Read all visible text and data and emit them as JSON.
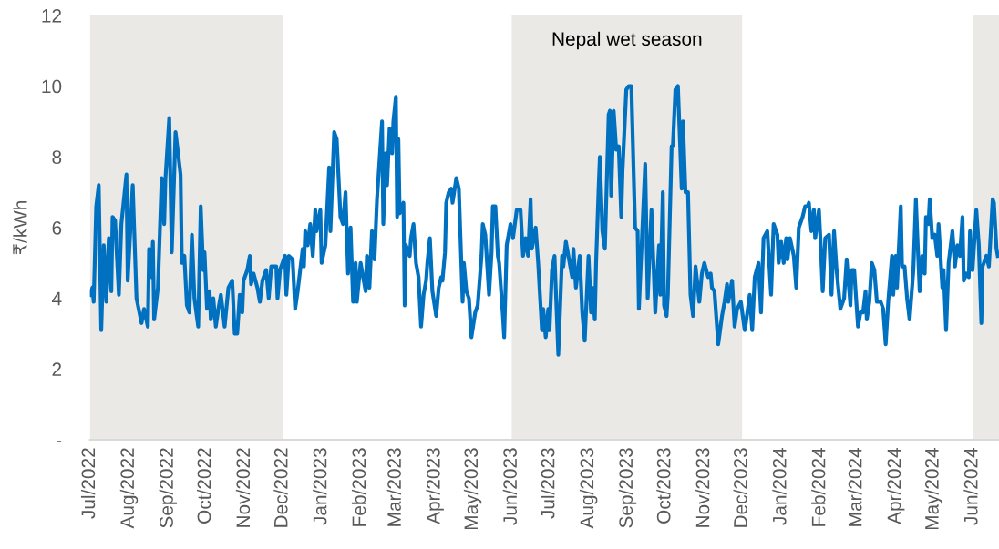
{
  "chart_data": {
    "type": "line",
    "ylabel": "₹/kWh",
    "color": "#0070c0",
    "line_style": "solid",
    "marker": "none",
    "grid": false,
    "legend": false,
    "xlim": [
      "2022-07-01",
      "2024-06-22"
    ],
    "ylim": [
      0,
      12
    ],
    "yticks": [
      {
        "value": 0,
        "label": "-"
      },
      2,
      4,
      6,
      8,
      10,
      12
    ],
    "xticks": [
      {
        "value": "2022-07-01",
        "label": "Jul/2022"
      },
      {
        "value": "2022-08-01",
        "label": "Aug/2022"
      },
      {
        "value": "2022-09-01",
        "label": "Sep/2022"
      },
      {
        "value": "2022-10-01",
        "label": "Oct/2022"
      },
      {
        "value": "2022-11-01",
        "label": "Nov/2022"
      },
      {
        "value": "2022-12-01",
        "label": "Dec/2022"
      },
      {
        "value": "2023-01-01",
        "label": "Jan/2023"
      },
      {
        "value": "2023-02-01",
        "label": "Feb/2023"
      },
      {
        "value": "2023-03-01",
        "label": "Mar/2023"
      },
      {
        "value": "2023-04-01",
        "label": "Apr/2023"
      },
      {
        "value": "2023-05-01",
        "label": "May/2023"
      },
      {
        "value": "2023-06-01",
        "label": "Jun/2023"
      },
      {
        "value": "2023-07-01",
        "label": "Jul/2023"
      },
      {
        "value": "2023-08-01",
        "label": "Aug/2023"
      },
      {
        "value": "2023-09-01",
        "label": "Sep/2023"
      },
      {
        "value": "2023-10-01",
        "label": "Oct/2023"
      },
      {
        "value": "2023-11-01",
        "label": "Nov/2023"
      },
      {
        "value": "2023-12-01",
        "label": "Dec/2023"
      },
      {
        "value": "2024-01-01",
        "label": "Jan/2024"
      },
      {
        "value": "2024-02-01",
        "label": "Feb/2024"
      },
      {
        "value": "2024-03-01",
        "label": "Mar/2024"
      },
      {
        "value": "2024-04-01",
        "label": "Apr/2024"
      },
      {
        "value": "2024-05-01",
        "label": "May/2024"
      },
      {
        "value": "2024-06-01",
        "label": "Jun/2024"
      }
    ],
    "bands": [
      {
        "axis": "x",
        "from": "2022-07-01",
        "to": "2022-12-01",
        "color": "#ebe9e5"
      },
      {
        "axis": "x",
        "from": "2023-06-01",
        "to": "2023-12-01",
        "color": "#ebe9e5",
        "label": "Nepal wet season"
      },
      {
        "axis": "x",
        "from": "2024-06-01",
        "to": "2024-06-22",
        "color": "#ebe9e5"
      }
    ],
    "x": [
      "2022-07-01",
      "2022-07-03",
      "2022-07-04",
      "2022-07-06",
      "2022-07-08",
      "2022-07-10",
      "2022-07-12",
      "2022-07-14",
      "2022-07-16",
      "2022-07-18",
      "2022-07-19",
      "2022-07-21",
      "2022-07-24",
      "2022-07-26",
      "2022-07-30",
      "2022-07-31",
      "2022-08-04",
      "2022-08-07",
      "2022-08-11",
      "2022-08-13",
      "2022-08-16",
      "2022-08-17",
      "2022-08-19",
      "2022-08-20",
      "2022-08-21",
      "2022-08-24",
      "2022-08-27",
      "2022-08-29",
      "2022-08-30",
      "2022-09-02",
      "2022-09-04",
      "2022-09-07",
      "2022-09-11",
      "2022-09-12",
      "2022-09-14",
      "2022-09-16",
      "2022-09-18",
      "2022-09-20",
      "2022-09-22",
      "2022-09-25",
      "2022-09-27",
      "2022-09-29",
      "2022-09-30",
      "2022-10-02",
      "2022-10-04",
      "2022-10-05",
      "2022-10-07",
      "2022-10-09",
      "2022-10-11",
      "2022-10-13",
      "2022-10-16",
      "2022-10-19",
      "2022-10-22",
      "2022-10-24",
      "2022-10-26",
      "2022-10-28",
      "2022-10-30",
      "2022-10-31",
      "2022-11-03",
      "2022-11-05",
      "2022-11-06",
      "2022-11-08",
      "2022-11-11",
      "2022-11-13",
      "2022-11-15",
      "2022-11-18",
      "2022-11-20",
      "2022-11-22",
      "2022-11-26",
      "2022-11-27",
      "2022-11-29",
      "2022-12-03",
      "2022-12-04",
      "2022-12-06",
      "2022-12-09",
      "2022-12-11",
      "2022-12-13",
      "2022-12-17",
      "2022-12-18",
      "2022-12-19",
      "2022-12-21",
      "2022-12-23",
      "2022-12-25",
      "2022-12-27",
      "2022-12-28",
      "2022-12-31",
      "2023-01-01",
      "2023-01-04",
      "2023-01-07",
      "2023-01-08",
      "2023-01-11",
      "2023-01-13",
      "2023-01-16",
      "2023-01-18",
      "2023-01-20",
      "2023-01-22",
      "2023-01-24",
      "2023-01-26",
      "2023-01-28",
      "2023-01-29",
      "2023-02-01",
      "2023-02-05",
      "2023-02-06",
      "2023-02-08",
      "2023-02-10",
      "2023-02-12",
      "2023-02-14",
      "2023-02-18",
      "2023-02-19",
      "2023-02-21",
      "2023-02-22",
      "2023-02-24",
      "2023-02-26",
      "2023-02-27",
      "2023-03-01",
      "2023-03-02",
      "2023-03-03",
      "2023-03-04",
      "2023-03-07",
      "2023-03-08",
      "2023-03-09",
      "2023-03-12",
      "2023-03-13",
      "2023-03-15",
      "2023-03-17",
      "2023-03-19",
      "2023-03-21",
      "2023-03-23",
      "2023-03-25",
      "2023-03-26",
      "2023-03-28",
      "2023-03-30",
      "2023-04-02",
      "2023-04-04",
      "2023-04-06",
      "2023-04-07",
      "2023-04-09",
      "2023-04-10",
      "2023-04-12",
      "2023-04-14",
      "2023-04-15",
      "2023-04-18",
      "2023-04-20",
      "2023-04-23",
      "2023-04-24",
      "2023-04-26",
      "2023-04-28",
      "2023-04-30",
      "2023-05-03",
      "2023-05-05",
      "2023-05-08",
      "2023-05-09",
      "2023-05-11",
      "2023-05-14",
      "2023-05-16",
      "2023-05-17",
      "2023-05-19",
      "2023-05-21",
      "2023-05-22",
      "2023-05-25",
      "2023-05-26",
      "2023-05-28",
      "2023-05-31",
      "2023-06-02",
      "2023-06-05",
      "2023-06-08",
      "2023-06-10",
      "2023-06-12",
      "2023-06-14",
      "2023-06-16",
      "2023-06-17",
      "2023-06-20",
      "2023-06-22",
      "2023-06-25",
      "2023-06-26",
      "2023-06-28",
      "2023-06-30",
      "2023-07-01",
      "2023-07-03",
      "2023-07-05",
      "2023-07-08",
      "2023-07-11",
      "2023-07-12",
      "2023-07-14",
      "2023-07-16",
      "2023-07-19",
      "2023-07-20",
      "2023-07-22",
      "2023-07-25",
      "2023-07-27",
      "2023-07-29",
      "2023-08-01",
      "2023-08-03",
      "2023-08-04",
      "2023-08-06",
      "2023-08-07",
      "2023-08-09",
      "2023-08-10",
      "2023-08-12",
      "2023-08-14",
      "2023-08-17",
      "2023-08-18",
      "2023-08-19",
      "2023-08-21",
      "2023-08-23",
      "2023-08-25",
      "2023-08-27",
      "2023-08-28",
      "2023-08-31",
      "2023-09-02",
      "2023-09-04",
      "2023-09-07",
      "2023-09-09",
      "2023-09-10",
      "2023-09-15",
      "2023-09-17",
      "2023-09-20",
      "2023-09-23",
      "2023-09-25",
      "2023-09-26",
      "2023-09-27",
      "2023-09-29",
      "2023-09-30",
      "2023-10-02",
      "2023-10-03",
      "2023-10-06",
      "2023-10-07",
      "2023-10-09",
      "2023-10-11",
      "2023-10-14",
      "2023-10-15",
      "2023-10-17",
      "2023-10-19",
      "2023-10-21",
      "2023-10-23",
      "2023-10-25",
      "2023-10-28",
      "2023-10-30",
      "2023-11-01",
      "2023-11-04",
      "2023-11-06",
      "2023-11-07",
      "2023-11-09",
      "2023-11-12",
      "2023-11-15",
      "2023-11-17",
      "2023-11-19",
      "2023-11-20",
      "2023-11-23",
      "2023-11-25",
      "2023-11-27",
      "2023-11-30",
      "2023-12-03",
      "2023-12-04",
      "2023-12-07",
      "2023-12-09",
      "2023-12-11",
      "2023-12-14",
      "2023-12-16",
      "2023-12-18",
      "2023-12-21",
      "2023-12-24",
      "2023-12-26",
      "2023-12-29",
      "2023-12-30",
      "2024-01-01",
      "2024-01-03",
      "2024-01-05",
      "2024-01-06",
      "2024-01-08",
      "2024-01-11",
      "2024-01-13",
      "2024-01-15",
      "2024-01-18",
      "2024-01-20",
      "2024-01-22",
      "2024-01-23",
      "2024-01-25",
      "2024-01-27",
      "2024-01-28",
      "2024-01-31",
      "2024-02-01",
      "2024-02-03",
      "2024-02-05",
      "2024-02-08",
      "2024-02-10",
      "2024-02-12",
      "2024-02-14",
      "2024-02-17",
      "2024-02-20",
      "2024-02-22",
      "2024-02-25",
      "2024-02-26",
      "2024-02-28",
      "2024-03-02",
      "2024-03-04",
      "2024-03-06",
      "2024-03-08",
      "2024-03-09",
      "2024-03-11",
      "2024-03-13",
      "2024-03-15",
      "2024-03-17",
      "2024-03-20",
      "2024-03-22",
      "2024-03-24",
      "2024-03-26",
      "2024-03-29",
      "2024-03-30",
      "2024-04-01",
      "2024-04-02",
      "2024-04-05",
      "2024-04-06",
      "2024-04-08",
      "2024-04-10",
      "2024-04-12",
      "2024-04-15",
      "2024-04-17",
      "2024-04-18",
      "2024-04-20",
      "2024-04-22",
      "2024-04-24",
      "2024-04-25",
      "2024-04-27",
      "2024-04-28",
      "2024-04-30",
      "2024-05-02",
      "2024-05-04",
      "2024-05-05",
      "2024-05-08",
      "2024-05-09",
      "2024-05-11",
      "2024-05-13",
      "2024-05-16",
      "2024-05-18",
      "2024-05-20",
      "2024-05-22",
      "2024-05-24",
      "2024-05-25",
      "2024-05-27",
      "2024-05-29",
      "2024-05-30",
      "2024-06-01",
      "2024-06-04",
      "2024-06-06",
      "2024-06-08",
      "2024-06-09",
      "2024-06-12",
      "2024-06-14",
      "2024-06-17",
      "2024-06-18",
      "2024-06-20",
      "2024-06-21"
    ],
    "values": [
      4.1,
      4.3,
      3.9,
      6.6,
      7.2,
      3.1,
      5.5,
      3.9,
      5.7,
      4.2,
      6.3,
      6.2,
      4.1,
      6.1,
      7.5,
      4.5,
      7.2,
      4.0,
      3.3,
      3.7,
      3.2,
      5.4,
      4.6,
      5.6,
      3.4,
      4.3,
      7.4,
      6.1,
      7.4,
      9.1,
      5.3,
      8.7,
      7.5,
      5.0,
      5.2,
      3.8,
      3.6,
      5.8,
      4.0,
      3.2,
      6.6,
      4.8,
      5.3,
      3.7,
      4.2,
      3.4,
      4.0,
      3.2,
      3.7,
      4.1,
      3.2,
      4.3,
      4.5,
      3.0,
      3.0,
      4.1,
      3.6,
      4.5,
      4.8,
      5.2,
      4.4,
      4.7,
      4.3,
      3.9,
      4.5,
      4.8,
      4.0,
      4.9,
      4.9,
      4.0,
      4.8,
      5.2,
      4.1,
      5.2,
      5.1,
      3.7,
      4.2,
      5.4,
      4.9,
      5.9,
      5.5,
      6.1,
      5.2,
      6.5,
      5.9,
      6.5,
      5.0,
      5.5,
      7.7,
      5.9,
      8.7,
      8.5,
      6.3,
      6.1,
      7.0,
      4.7,
      6.0,
      3.9,
      5.0,
      3.9,
      5.0,
      4.2,
      5.2,
      4.3,
      5.9,
      5.1,
      6.8,
      9.0,
      6.1,
      8.1,
      7.2,
      8.8,
      8.1,
      9.0,
      9.7,
      6.3,
      8.5,
      6.4,
      6.7,
      3.8,
      5.5,
      5.2,
      5.7,
      6.1,
      5.0,
      4.6,
      3.2,
      4.1,
      4.5,
      5.0,
      5.7,
      4.2,
      3.5,
      4.3,
      4.6,
      4.5,
      5.3,
      6.7,
      7.0,
      7.1,
      6.7,
      7.4,
      7.1,
      3.9,
      5.0,
      4.2,
      4.0,
      2.9,
      3.6,
      3.8,
      5.2,
      6.1,
      5.8,
      4.1,
      5.3,
      6.6,
      6.6,
      5.2,
      5.0,
      3.5,
      2.9,
      5.5,
      6.1,
      5.7,
      6.5,
      6.5,
      5.2,
      5.7,
      5.2,
      6.8,
      5.4,
      6.0,
      5.0,
      3.1,
      3.7,
      2.9,
      3.7,
      3.1,
      4.8,
      5.2,
      2.4,
      5.2,
      4.9,
      5.6,
      5.2,
      4.6,
      5.4,
      4.3,
      5.2,
      3.6,
      2.8,
      5.2,
      3.6,
      4.3,
      3.4,
      5.0,
      7.1,
      8.0,
      5.9,
      5.4,
      9.2,
      9.3,
      6.9,
      9.3,
      8.2,
      8.3,
      6.3,
      7.6,
      9.9,
      10.0,
      10.0,
      6.0,
      5.9,
      3.7,
      7.8,
      4.0,
      6.5,
      3.6,
      4.9,
      5.5,
      4.1,
      7.0,
      3.8,
      3.5,
      4.1,
      8.3,
      8.3,
      9.9,
      10.0,
      7.1,
      9.0,
      7.0,
      7.0,
      4.1,
      3.5,
      4.9,
      3.9,
      4.7,
      5.0,
      4.6,
      4.7,
      4.3,
      4.2,
      2.7,
      3.5,
      3.9,
      4.4,
      3.9,
      4.5,
      3.2,
      3.7,
      3.9,
      3.1,
      3.3,
      4.1,
      3.1,
      4.6,
      5.0,
      3.6,
      5.7,
      5.9,
      4.1,
      6.1,
      5.8,
      5.0,
      5.6,
      5.0,
      5.7,
      5.1,
      5.7,
      5.2,
      4.3,
      6.0,
      6.3,
      6.6,
      6.6,
      6.7,
      5.9,
      6.5,
      5.7,
      6.5,
      5.8,
      4.2,
      5.7,
      5.8,
      4.1,
      5.9,
      4.8,
      3.7,
      4.0,
      5.1,
      3.8,
      4.8,
      4.8,
      3.2,
      3.6,
      3.6,
      4.2,
      3.4,
      3.9,
      5.0,
      4.8,
      3.9,
      3.9,
      3.7,
      2.7,
      3.9,
      5.2,
      4.1,
      5.2,
      4.3,
      6.6,
      4.9,
      4.9,
      4.0,
      3.4,
      4.8,
      6.8,
      5.9,
      4.2,
      5.2,
      4.7,
      6.3,
      6.1,
      6.8,
      5.7,
      5.8,
      5.2,
      6.1,
      4.3,
      4.8,
      3.1,
      5.0,
      5.9,
      4.9,
      5.5,
      5.2,
      6.3,
      4.5,
      4.7,
      4.6,
      5.9,
      4.8,
      6.5,
      5.5,
      3.3,
      4.9,
      5.2,
      4.9,
      6.8,
      6.7,
      5.4,
      5.2
    ]
  }
}
